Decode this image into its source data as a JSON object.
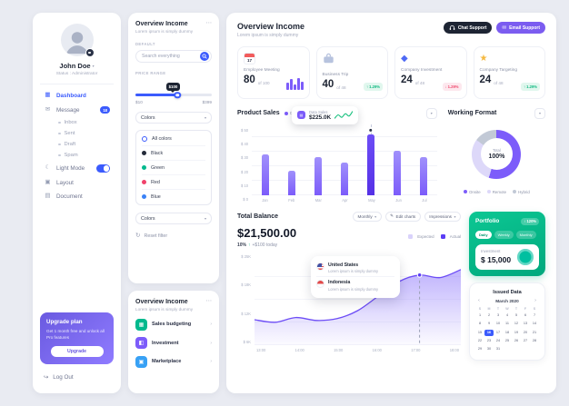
{
  "sidebar": {
    "user_name": "John Doe",
    "user_status": "Status : Administrator",
    "menu": [
      {
        "label": "Dashboard"
      },
      {
        "label": "Message",
        "badge": "18"
      },
      {
        "label": "Inbox"
      },
      {
        "label": "Sent"
      },
      {
        "label": "Draft"
      },
      {
        "label": "Spam"
      },
      {
        "label": "Light Mode"
      },
      {
        "label": "Layout"
      },
      {
        "label": "Document"
      }
    ],
    "upgrade": {
      "title": "Upgrade plan",
      "description": "Get 1 month free and unlock all Pro features",
      "button": "Upgrade"
    },
    "logout": "Log Out"
  },
  "filters": {
    "title": "Overview Income",
    "subtitle": "Lorem ipsum is simply dummy",
    "section_label": "DEFAULT",
    "search_placeholder": "Search everything",
    "price_label": "PRICE RANGE",
    "price_tooltip": "$100",
    "price_min": "$10",
    "price_max": "$399",
    "dropdown_value": "Colors",
    "options": [
      {
        "label": "All colors",
        "swatch": null
      },
      {
        "label": "Black",
        "swatch": "#242b3a"
      },
      {
        "label": "Green",
        "swatch": "#00b98d"
      },
      {
        "label": "Red",
        "swatch": "#f0426b"
      },
      {
        "label": "Blue",
        "swatch": "#3b82f6"
      }
    ],
    "dropdown2_value": "Colors",
    "reset_label": "Reset filter"
  },
  "overview_list": {
    "title": "Overview Income",
    "subtitle": "Lorem ipsum is simply dummy",
    "items": [
      {
        "label": "Sales budgeting",
        "color": "#00b98d"
      },
      {
        "label": "Investment",
        "color": "#7c5cfa"
      },
      {
        "label": "Marketplace",
        "color": "#38a1f5"
      }
    ]
  },
  "header": {
    "title": "Overview Income",
    "subtitle": "Lorem ipsum is simply dummy",
    "chat_button": "Chat Support",
    "email_button": "Email Support"
  },
  "stats": [
    {
      "label": "Employee Meeting",
      "value": "80",
      "total": "of 100",
      "icon_date": "17"
    },
    {
      "label": "Business Trip",
      "value": "40",
      "total": "of 48",
      "trend": "1.29%",
      "direction": "up"
    },
    {
      "label": "Company Investment",
      "value": "24",
      "total": "of 48",
      "trend": "1.29%",
      "direction": "down"
    },
    {
      "label": "Company Targeting",
      "value": "24",
      "total": "of 48",
      "trend": "1.29%",
      "direction": "up"
    }
  ],
  "balance": {
    "amount": "$21,500.00",
    "change_pct": "10%",
    "change_arrow": "↑",
    "change_note": "+$100 today",
    "period_dropdown": "Monthly",
    "edit_button": "Edit charts",
    "impressions_button": "Impressions",
    "tooltip_rows": [
      {
        "name": "United States",
        "note": "Lorem ipsum is simply dummy"
      },
      {
        "name": "Indonesia",
        "note": "Lorem ipsum is simply dummy"
      }
    ]
  },
  "portfolio": {
    "title": "Portfolio",
    "badge": "↑ 120%",
    "tabs": [
      "Daily",
      "Weekly",
      "Monthly"
    ],
    "investment_label": "Investment",
    "investment_value": "$ 15,000"
  },
  "calendar": {
    "title": "Issued Data",
    "month": "March 2020",
    "weekdays": [
      "S",
      "M",
      "T",
      "W",
      "T",
      "F",
      "S"
    ],
    "weeks": [
      [
        1,
        2,
        3,
        4,
        5,
        6,
        7
      ],
      [
        8,
        9,
        10,
        11,
        12,
        13,
        14
      ],
      [
        15,
        16,
        17,
        18,
        19,
        20,
        21
      ],
      [
        22,
        23,
        24,
        25,
        26,
        27,
        28
      ],
      [
        29,
        30,
        31,
        null,
        null,
        null,
        null
      ]
    ],
    "selected_day": 16
  },
  "chart_data": [
    {
      "id": "product_sales",
      "type": "bar",
      "title": "Product Sales",
      "legend": [
        "Charts",
        "Marketplaces"
      ],
      "categories": [
        "Jan",
        "Feb",
        "Mar",
        "Apr",
        "May",
        "Jun",
        "Jul"
      ],
      "values": [
        30,
        18,
        28,
        24,
        45,
        33,
        28
      ],
      "highlight_index": 4,
      "y_ticks": [
        "$ 50",
        "$ 40",
        "$ 30",
        "$ 20",
        "$ 10",
        "$ 0"
      ],
      "ylim": [
        0,
        50
      ],
      "tooltip": {
        "label": "Data Sales",
        "value": "$225.0K"
      }
    },
    {
      "id": "working_format",
      "type": "donut",
      "title": "Working Format",
      "center_label": "Total",
      "center_value": "100%",
      "segments": [
        {
          "label": "Onsite",
          "value": 55,
          "color": "#7c5cfa"
        },
        {
          "label": "Remote",
          "value": 30,
          "color": "#ddd8f9"
        },
        {
          "label": "Hybrid",
          "value": 15,
          "color": "#c2c9d6"
        }
      ]
    },
    {
      "id": "total_balance",
      "type": "area",
      "title": "Total Balance",
      "legend": [
        "Expected",
        "Actual"
      ],
      "x_ticks": [
        "13:00",
        "14:00",
        "15:00",
        "16:00",
        "17:00",
        "18:00"
      ],
      "y_ticks": [
        "$ 25K",
        "$ 18K",
        "$ 12K",
        "$ 6K"
      ],
      "ylim": [
        0,
        25
      ],
      "values": [
        7,
        6.3,
        7.6,
        6.8,
        7.3,
        9.5,
        13.5,
        17.5,
        19.3,
        18.6,
        20.8
      ],
      "marker_index": 8
    },
    {
      "id": "stat_mini",
      "type": "bar",
      "values": [
        5,
        8,
        4,
        9,
        6
      ]
    },
    {
      "id": "tip_spark",
      "type": "line",
      "values": [
        3,
        6,
        4,
        7,
        5,
        9
      ]
    }
  ]
}
